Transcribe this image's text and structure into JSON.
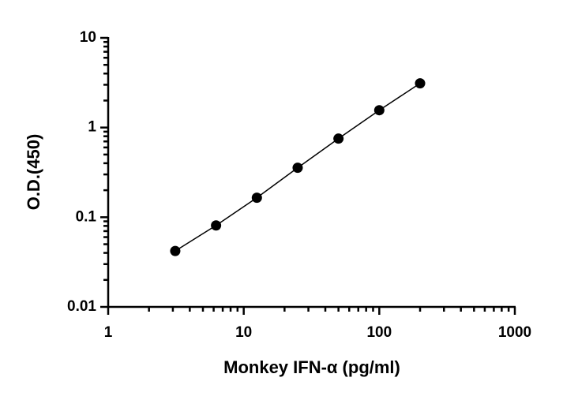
{
  "chart_data": {
    "type": "scatter",
    "xlabel": "Monkey IFN-α (pg/ml)",
    "ylabel": "O.D.(450)",
    "xscale": "log",
    "yscale": "log",
    "xlim": [
      1,
      1000
    ],
    "ylim": [
      0.01,
      10
    ],
    "xticks": [
      1,
      10,
      100,
      1000
    ],
    "yticks": [
      0.01,
      0.1,
      1,
      10
    ],
    "xminorticks": [
      2,
      3,
      4,
      5,
      6,
      7,
      8,
      9,
      20,
      30,
      40,
      50,
      60,
      70,
      80,
      90,
      200,
      300,
      400,
      500,
      600,
      700,
      800,
      900
    ],
    "yminorticks": [
      0.02,
      0.03,
      0.04,
      0.05,
      0.06,
      0.07,
      0.08,
      0.09,
      0.2,
      0.3,
      0.4,
      0.5,
      0.6,
      0.7,
      0.8,
      0.9,
      2,
      3,
      4,
      5,
      6,
      7,
      8,
      9
    ],
    "connect": true,
    "series": [
      {
        "color": "#000000",
        "x": [
          3.125,
          6.25,
          12.5,
          25,
          50,
          100,
          200
        ],
        "values": [
          0.042,
          0.081,
          0.165,
          0.356,
          0.753,
          1.56,
          3.11
        ]
      }
    ]
  }
}
